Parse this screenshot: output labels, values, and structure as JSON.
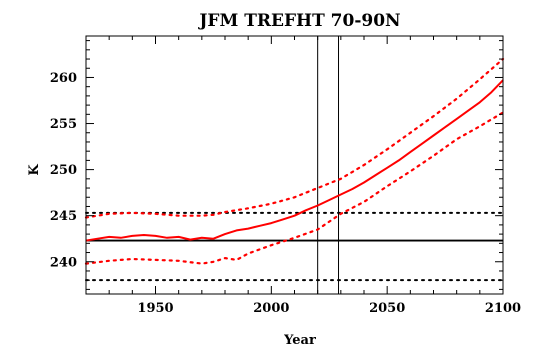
{
  "chart_data": {
    "type": "line",
    "title": "JFM TREFHT 70-90N",
    "xlabel": "Year",
    "ylabel": "K",
    "xlim": [
      1920,
      2100
    ],
    "ylim": [
      236.5,
      264.5
    ],
    "xticks": [
      1950,
      2000,
      2050,
      2100
    ],
    "yticks": [
      240,
      245,
      250,
      255,
      260
    ],
    "grid": false,
    "colors": {
      "series": "#ff0000",
      "reference": "#000000"
    },
    "series": [
      {
        "style": "solid",
        "x": [
          1920,
          1925,
          1930,
          1935,
          1940,
          1945,
          1950,
          1955,
          1960,
          1965,
          1970,
          1975,
          1980,
          1985,
          1990,
          1995,
          2000,
          2005,
          2010,
          2015,
          2020,
          2025,
          2030,
          2035,
          2040,
          2045,
          2050,
          2055,
          2060,
          2065,
          2070,
          2075,
          2080,
          2085,
          2090,
          2095,
          2100
        ],
        "y": [
          242.3,
          242.5,
          242.7,
          242.6,
          242.8,
          242.9,
          242.8,
          242.6,
          242.7,
          242.4,
          242.6,
          242.5,
          243.0,
          243.4,
          243.6,
          243.9,
          244.2,
          244.6,
          245.0,
          245.6,
          246.1,
          246.7,
          247.3,
          247.9,
          248.6,
          249.4,
          250.2,
          251.0,
          251.9,
          252.8,
          253.7,
          254.6,
          255.5,
          256.4,
          257.3,
          258.4,
          259.7
        ]
      },
      {
        "style": "dotted",
        "x": [
          1920,
          1930,
          1940,
          1950,
          1960,
          1970,
          1975,
          1980,
          1990,
          2000,
          2010,
          2020,
          2030,
          2040,
          2050,
          2060,
          2070,
          2080,
          2090,
          2100
        ],
        "y": [
          244.8,
          245.2,
          245.3,
          245.2,
          245.0,
          245.0,
          245.1,
          245.4,
          245.8,
          246.3,
          247.0,
          248.0,
          249.0,
          250.5,
          252.2,
          254.0,
          255.8,
          257.7,
          259.8,
          262.0
        ]
      },
      {
        "style": "dotted",
        "x": [
          1920,
          1930,
          1940,
          1950,
          1960,
          1970,
          1975,
          1980,
          1985,
          1990,
          2000,
          2010,
          2020,
          2030,
          2040,
          2050,
          2060,
          2070,
          2080,
          2090,
          2100
        ],
        "y": [
          239.8,
          240.1,
          240.3,
          240.2,
          240.1,
          239.8,
          240.0,
          240.4,
          240.2,
          240.9,
          241.8,
          242.6,
          243.5,
          245.2,
          246.5,
          248.2,
          249.8,
          251.5,
          253.3,
          254.7,
          256.2
        ]
      }
    ],
    "reference_lines": {
      "horizontal": [
        {
          "y": 242.3,
          "style": "solid"
        },
        {
          "y": 245.3,
          "style": "dotted"
        },
        {
          "y": 238.0,
          "style": "dotted"
        }
      ],
      "vertical": [
        {
          "x": 2020,
          "style": "solid"
        },
        {
          "x": 2029,
          "style": "solid"
        }
      ]
    }
  }
}
